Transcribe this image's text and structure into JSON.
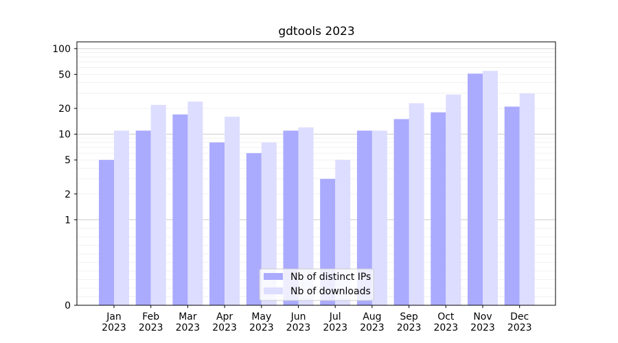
{
  "chart_data": {
    "type": "bar",
    "title": "gdtools 2023",
    "xlabel": "",
    "ylabel": "",
    "yscale": "symlog",
    "ylim": [
      0,
      120
    ],
    "yticks": [
      0,
      1,
      2,
      5,
      10,
      20,
      50,
      100
    ],
    "grid": true,
    "legend_position": "bottom-center",
    "categories": [
      [
        "Jan",
        "2023"
      ],
      [
        "Feb",
        "2023"
      ],
      [
        "Mar",
        "2023"
      ],
      [
        "Apr",
        "2023"
      ],
      [
        "May",
        "2023"
      ],
      [
        "Jun",
        "2023"
      ],
      [
        "Jul",
        "2023"
      ],
      [
        "Aug",
        "2023"
      ],
      [
        "Sep",
        "2023"
      ],
      [
        "Oct",
        "2023"
      ],
      [
        "Nov",
        "2023"
      ],
      [
        "Dec",
        "2023"
      ]
    ],
    "series": [
      {
        "name": "Nb of distinct IPs",
        "color": "#aaaaff",
        "values": [
          5,
          11,
          17,
          8,
          6,
          11,
          3,
          11,
          15,
          18,
          51,
          21
        ]
      },
      {
        "name": "Nb of downloads",
        "color": "#ddddff",
        "values": [
          11,
          22,
          24,
          16,
          8,
          12,
          5,
          11,
          23,
          29,
          55,
          30
        ]
      }
    ]
  }
}
